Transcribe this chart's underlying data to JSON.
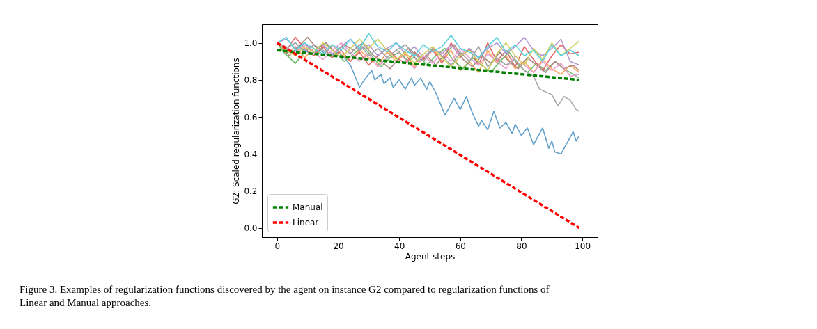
{
  "chart_data": {
    "type": "line",
    "xlabel": "Agent steps",
    "ylabel": "G2: Scaled regularization functions",
    "xlim": [
      -5,
      105
    ],
    "ylim": [
      -0.05,
      1.1
    ],
    "xticks": [
      0,
      20,
      40,
      60,
      80,
      100
    ],
    "yticks": [
      {
        "value": 0,
        "label": "0.0"
      },
      0.2,
      0.4,
      0.6,
      0.8,
      {
        "value": 1,
        "label": "1.0"
      }
    ],
    "grid": false,
    "legend": "bottom left",
    "marker": "none",
    "series": [
      {
        "color": "#62a0cb",
        "line_style": "solid",
        "x": [
          0,
          2,
          5,
          8,
          11,
          14,
          17,
          20,
          22,
          24,
          27,
          29,
          31,
          32,
          34,
          35,
          37,
          38,
          40,
          42,
          44,
          45,
          47,
          49,
          50,
          52,
          55,
          58,
          60,
          62,
          64,
          66,
          67,
          69,
          71,
          73,
          75,
          77,
          78,
          80,
          82,
          84,
          87,
          89,
          90,
          91,
          93,
          97,
          98,
          99
        ],
        "values": [
          1.0,
          0.97,
          0.95,
          0.97,
          0.94,
          0.96,
          0.93,
          0.95,
          0.92,
          0.88,
          0.76,
          0.81,
          0.85,
          0.8,
          0.83,
          0.78,
          0.81,
          0.76,
          0.8,
          0.75,
          0.81,
          0.77,
          0.81,
          0.75,
          0.79,
          0.73,
          0.61,
          0.7,
          0.64,
          0.71,
          0.62,
          0.55,
          0.58,
          0.53,
          0.63,
          0.54,
          0.57,
          0.51,
          0.56,
          0.5,
          0.54,
          0.45,
          0.54,
          0.43,
          0.47,
          0.41,
          0.4,
          0.52,
          0.47,
          0.5
        ]
      },
      {
        "color": "#ffa55e",
        "line_style": "solid",
        "x": [
          0,
          3,
          6,
          9,
          12,
          15,
          18,
          21,
          24,
          27,
          30,
          33,
          36,
          39,
          42,
          45,
          48,
          51,
          54,
          57,
          60,
          63,
          66,
          69,
          72,
          75,
          78,
          81,
          84,
          87,
          90,
          93,
          96,
          99
        ],
        "values": [
          1.0,
          0.94,
          0.98,
          0.92,
          0.97,
          0.93,
          0.99,
          0.94,
          0.9,
          0.96,
          0.92,
          0.88,
          0.95,
          0.9,
          0.94,
          0.87,
          0.92,
          0.97,
          0.9,
          0.96,
          0.85,
          0.9,
          0.84,
          0.96,
          0.89,
          0.93,
          0.86,
          0.9,
          0.84,
          0.91,
          0.86,
          0.83,
          0.88,
          0.84
        ]
      },
      {
        "color": "#6bbd6b",
        "line_style": "solid",
        "x": [
          0,
          2,
          4,
          6,
          8,
          10,
          13,
          16,
          19,
          22,
          25,
          28,
          31,
          34,
          37,
          40,
          43,
          46,
          49,
          52,
          55,
          58,
          61,
          64,
          67,
          70,
          73,
          76,
          79,
          82,
          85,
          88,
          91,
          94,
          97,
          99
        ],
        "values": [
          1.0,
          0.95,
          0.92,
          0.89,
          0.93,
          0.97,
          0.94,
          0.99,
          0.95,
          0.9,
          0.94,
          0.98,
          0.93,
          0.87,
          0.92,
          0.95,
          0.9,
          0.94,
          0.88,
          0.93,
          0.97,
          0.9,
          0.86,
          0.92,
          0.88,
          0.84,
          0.9,
          0.95,
          0.88,
          0.84,
          0.89,
          0.85,
          0.9,
          0.86,
          0.83,
          0.81
        ]
      },
      {
        "color": "#e26869",
        "line_style": "solid",
        "x": [
          0,
          3,
          6,
          9,
          12,
          15,
          18,
          21,
          24,
          27,
          30,
          33,
          36,
          39,
          42,
          45,
          48,
          51,
          54,
          57,
          60,
          63,
          66,
          69,
          72,
          75,
          78,
          81,
          84,
          87,
          90,
          93,
          96,
          99
        ],
        "values": [
          1.0,
          0.96,
          1.03,
          0.97,
          0.93,
          0.98,
          0.92,
          0.96,
          0.9,
          0.95,
          0.88,
          0.93,
          0.97,
          0.92,
          0.89,
          0.95,
          0.91,
          0.96,
          0.89,
          1.0,
          0.92,
          0.97,
          0.88,
          1.0,
          0.9,
          0.96,
          0.87,
          0.98,
          0.91,
          0.85,
          0.93,
          0.99,
          0.94,
          0.95
        ]
      },
      {
        "color": "#b495d1",
        "line_style": "solid",
        "x": [
          0,
          3,
          6,
          9,
          12,
          15,
          18,
          21,
          24,
          27,
          30,
          33,
          36,
          39,
          42,
          45,
          48,
          51,
          54,
          57,
          60,
          63,
          66,
          69,
          72,
          75,
          78,
          81,
          84,
          87,
          90,
          93,
          96,
          99
        ],
        "values": [
          1.0,
          1.02,
          0.97,
          1.0,
          0.95,
          0.99,
          0.94,
          0.98,
          1.02,
          0.96,
          0.99,
          0.93,
          0.97,
          1.0,
          0.94,
          0.98,
          0.92,
          0.97,
          0.94,
          0.99,
          0.93,
          0.97,
          0.92,
          0.97,
          1.0,
          0.94,
          0.98,
          1.03,
          0.96,
          0.93,
          0.97,
          1.02,
          0.9,
          0.88
        ]
      },
      {
        "color": "#ae8981",
        "line_style": "solid",
        "x": [
          0,
          2,
          4,
          7,
          10,
          13,
          16,
          19,
          22,
          25,
          28,
          31,
          34,
          37,
          40,
          43,
          46,
          49,
          52,
          55,
          58,
          61,
          64,
          67,
          70,
          73,
          76,
          79,
          82,
          85,
          88,
          91,
          94,
          97,
          99
        ],
        "values": [
          1.0,
          0.97,
          0.93,
          0.98,
          1.03,
          0.97,
          1.0,
          0.95,
          0.99,
          0.96,
          1.0,
          0.94,
          0.9,
          0.86,
          0.92,
          0.97,
          0.9,
          0.93,
          0.88,
          0.94,
          0.99,
          0.91,
          0.87,
          0.93,
          0.89,
          0.95,
          0.9,
          0.86,
          0.92,
          0.88,
          0.84,
          0.9,
          0.86,
          0.88,
          0.85
        ]
      },
      {
        "color": "#eba0d4",
        "line_style": "solid",
        "x": [
          0,
          3,
          6,
          9,
          12,
          15,
          18,
          21,
          24,
          27,
          30,
          33,
          36,
          39,
          42,
          45,
          48,
          51,
          54,
          57,
          60,
          63,
          66,
          69,
          72,
          75,
          78,
          81,
          84,
          87,
          90,
          93,
          96,
          99
        ],
        "values": [
          1.0,
          0.98,
          0.94,
          0.99,
          0.95,
          0.91,
          0.96,
          1.0,
          0.95,
          0.9,
          0.94,
          0.87,
          0.92,
          0.96,
          0.91,
          0.86,
          0.93,
          0.89,
          0.95,
          0.9,
          0.97,
          0.92,
          0.88,
          0.94,
          0.9,
          0.86,
          0.93,
          0.88,
          0.84,
          0.9,
          0.85,
          0.89,
          0.82,
          0.83
        ]
      },
      {
        "color": "#a5a5a5",
        "line_style": "solid",
        "x": [
          0,
          3,
          6,
          9,
          12,
          15,
          18,
          21,
          24,
          27,
          30,
          33,
          36,
          39,
          42,
          45,
          48,
          51,
          54,
          57,
          60,
          63,
          66,
          69,
          72,
          75,
          78,
          81,
          84,
          86,
          90,
          92,
          94,
          96,
          98,
          99
        ],
        "values": [
          1.0,
          0.97,
          1.0,
          0.95,
          0.99,
          0.96,
          0.93,
          0.98,
          0.94,
          0.99,
          0.93,
          0.97,
          0.92,
          0.96,
          0.99,
          0.94,
          0.9,
          0.97,
          0.93,
          0.88,
          0.95,
          0.9,
          0.98,
          0.87,
          0.92,
          0.88,
          0.91,
          0.85,
          0.82,
          0.75,
          0.72,
          0.66,
          0.71,
          0.69,
          0.64,
          0.63
        ]
      },
      {
        "color": "#d0d164",
        "line_style": "solid",
        "x": [
          0,
          3,
          6,
          9,
          12,
          15,
          18,
          21,
          24,
          27,
          30,
          33,
          36,
          39,
          42,
          45,
          48,
          51,
          54,
          57,
          60,
          63,
          66,
          69,
          72,
          75,
          78,
          81,
          84,
          87,
          90,
          93,
          96,
          99
        ],
        "values": [
          1.0,
          0.96,
          0.93,
          0.98,
          0.95,
          1.0,
          0.96,
          0.92,
          0.97,
          1.02,
          0.97,
          1.02,
          0.96,
          0.91,
          0.95,
          0.89,
          0.94,
          0.98,
          0.92,
          0.87,
          0.93,
          0.96,
          0.9,
          0.85,
          0.94,
          1.0,
          0.93,
          0.88,
          0.97,
          0.91,
          1.0,
          0.93,
          0.97,
          1.01
        ]
      },
      {
        "color": "#5dd2dd",
        "line_style": "solid",
        "x": [
          0,
          3,
          6,
          9,
          12,
          15,
          18,
          21,
          24,
          27,
          30,
          33,
          36,
          39,
          42,
          45,
          48,
          51,
          54,
          57,
          60,
          63,
          66,
          69,
          72,
          75,
          78,
          81,
          84,
          87,
          90,
          93,
          96,
          99
        ],
        "values": [
          1.0,
          1.03,
          0.96,
          1.0,
          0.97,
          0.94,
          0.99,
          0.96,
          1.02,
          0.97,
          1.05,
          0.98,
          0.95,
          1.0,
          0.96,
          0.93,
          0.99,
          0.95,
          0.98,
          1.04,
          0.97,
          0.95,
          0.92,
          0.98,
          1.03,
          0.95,
          0.99,
          0.93,
          0.96,
          0.9,
          0.99,
          0.93,
          0.96,
          0.93
        ]
      },
      {
        "name": "Manual",
        "color": "#008000",
        "line_style": "dashed",
        "x": [
          0,
          99
        ],
        "values": [
          0.96,
          0.8
        ]
      },
      {
        "name": "Linear",
        "color": "#ff0000",
        "line_style": "dashed",
        "x": [
          0,
          99
        ],
        "values": [
          1.0,
          0.0
        ]
      }
    ],
    "annotations": [
      "Figure 3. Examples of regularization functions discovered by the agent on instance G2 compared to regularization functions of Linear and Manual approaches."
    ]
  }
}
